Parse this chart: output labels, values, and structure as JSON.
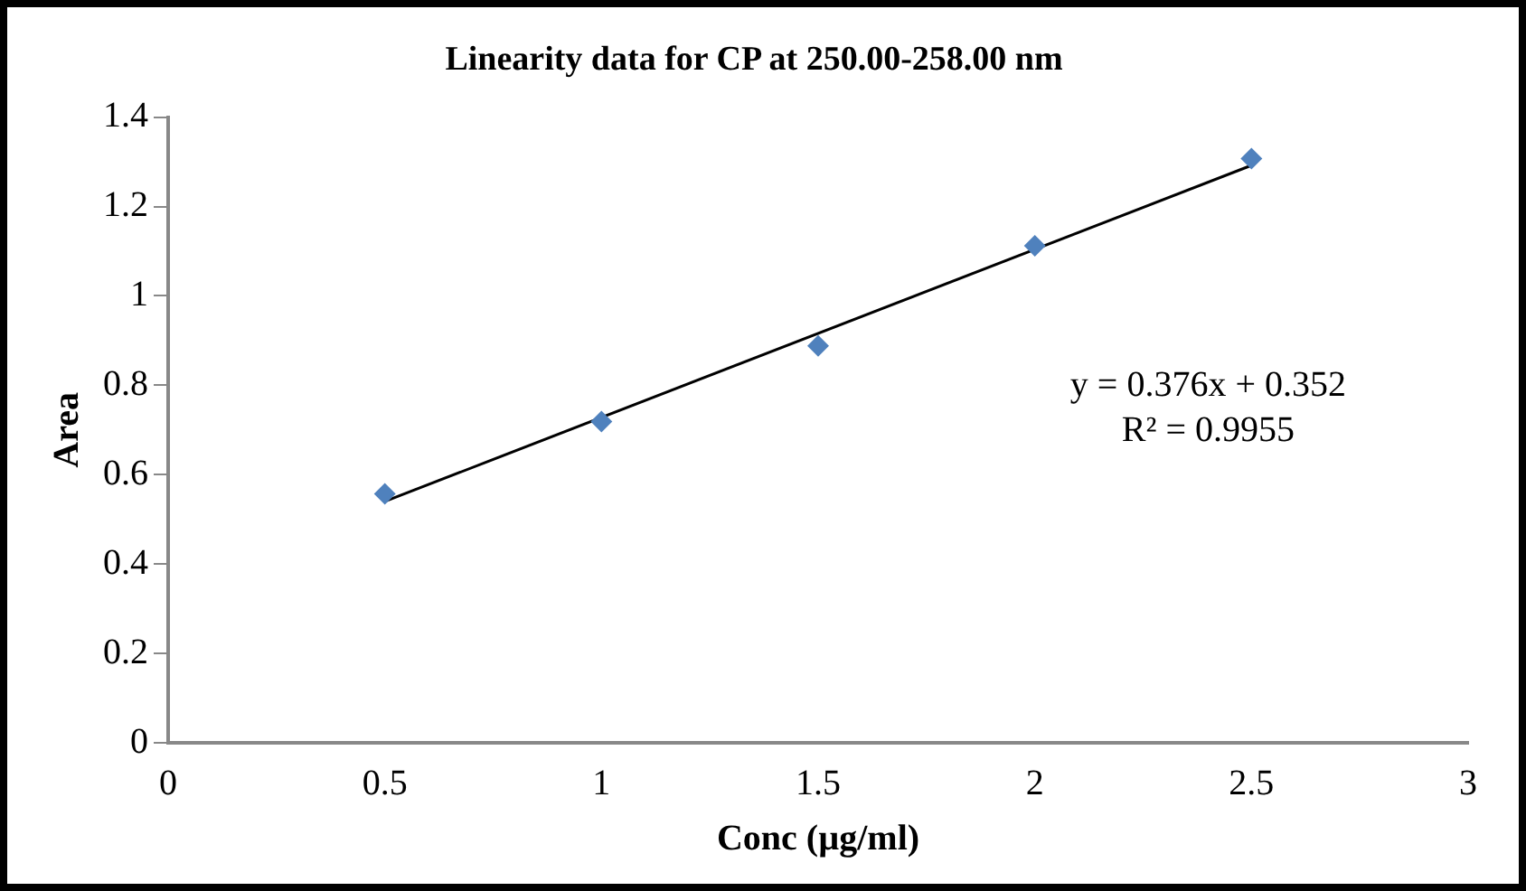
{
  "chart_data": {
    "type": "scatter",
    "title": "Linearity data for CP at 250.00-258.00 nm",
    "xlabel": "Conc (µg/ml)",
    "ylabel": "Area",
    "xlim": [
      0,
      3
    ],
    "xticks": [
      0,
      0.5,
      1,
      1.5,
      2,
      2.5,
      3
    ],
    "ylim": [
      0,
      1.4
    ],
    "yticks": [
      0,
      0.2,
      0.4,
      0.6,
      0.8,
      1,
      1.2,
      1.4
    ],
    "grid": false,
    "legend": false,
    "annotations": [
      "y = 0.376x + 0.352",
      "R² = 0.9955"
    ],
    "series": [
      {
        "type": "scatter",
        "color": "#4f81bd",
        "marker": "diamond",
        "x": [
          0.5,
          1,
          1.5,
          2,
          2.5
        ],
        "values": [
          0.557,
          0.719,
          0.888,
          1.112,
          1.307
        ]
      },
      {
        "type": "line",
        "color": "#000000",
        "marker": "none",
        "line_style": "solid",
        "x": [
          0.5,
          2.5
        ],
        "values": [
          0.54,
          1.292
        ]
      }
    ]
  }
}
